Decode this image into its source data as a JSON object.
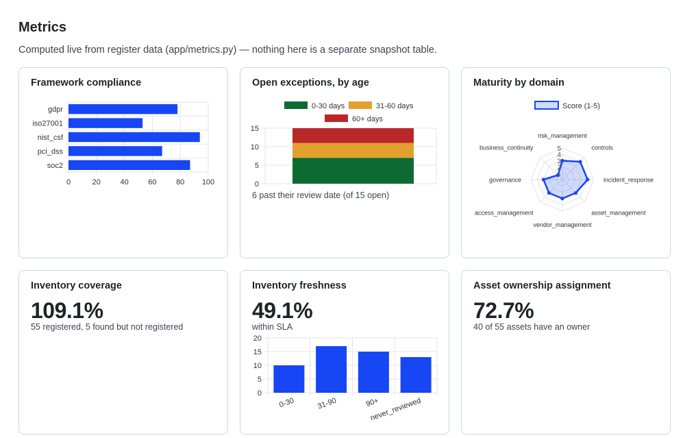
{
  "page": {
    "title": "Metrics",
    "subtitle": "Computed live from register data (app/metrics.py) — nothing here is a separate snapshot table."
  },
  "cards": {
    "framework": {
      "title": "Framework compliance"
    },
    "exceptions": {
      "title": "Open exceptions, by age",
      "note": "6 past their review date (of 15 open)"
    },
    "maturity": {
      "title": "Maturity by domain"
    },
    "coverage": {
      "title": "Inventory coverage",
      "value": "109.1%",
      "detail": "55 registered, 5 found but not registered"
    },
    "freshness": {
      "title": "Inventory freshness",
      "value": "49.1%",
      "detail": "within SLA"
    },
    "ownership": {
      "title": "Asset ownership assignment",
      "value": "72.7%",
      "detail": "40 of 55 assets have an owner"
    }
  },
  "chart_data": [
    {
      "id": "framework",
      "type": "bar",
      "orientation": "horizontal",
      "categories": [
        "gdpr",
        "iso27001",
        "nist_csf",
        "pci_dss",
        "soc2"
      ],
      "values": [
        78,
        53,
        94,
        67,
        87
      ],
      "xlim": [
        0,
        100
      ],
      "xticks": [
        0,
        20,
        40,
        60,
        80,
        100
      ],
      "grid": true,
      "color": "#1746f5"
    },
    {
      "id": "exceptions",
      "type": "bar",
      "stacked": true,
      "categories": [
        "Open exceptions"
      ],
      "series": [
        {
          "name": "0-30 days",
          "values": [
            7
          ],
          "color": "#0d6b32"
        },
        {
          "name": "31-60 days",
          "values": [
            4
          ],
          "color": "#e3a02c"
        },
        {
          "name": "60+ days",
          "values": [
            4
          ],
          "color": "#b92828"
        }
      ],
      "ylim": [
        0,
        15
      ],
      "yticks": [
        0,
        5,
        10,
        15
      ],
      "legend": "top",
      "grid": true
    },
    {
      "id": "maturity",
      "type": "radar",
      "axes": [
        "risk_management",
        "controls",
        "incident_response",
        "asset_management",
        "vendor_management",
        "access_management",
        "governance",
        "business_continuity"
      ],
      "series": [
        {
          "name": "Score (1-5)",
          "values": [
            3,
            4,
            4,
            3,
            3,
            3,
            3,
            1
          ]
        }
      ],
      "rlim": [
        0,
        5
      ],
      "rticks": [
        1,
        2,
        3,
        4,
        5
      ],
      "legend": "top",
      "color": "#1746f5"
    },
    {
      "id": "freshness",
      "type": "bar",
      "categories": [
        "0-30",
        "31-90",
        "90+",
        "never_reviewed"
      ],
      "values": [
        10,
        17,
        15,
        13
      ],
      "ylim": [
        0,
        20
      ],
      "yticks": [
        0,
        5,
        10,
        15,
        20
      ],
      "grid": true,
      "color": "#1746f5"
    }
  ]
}
